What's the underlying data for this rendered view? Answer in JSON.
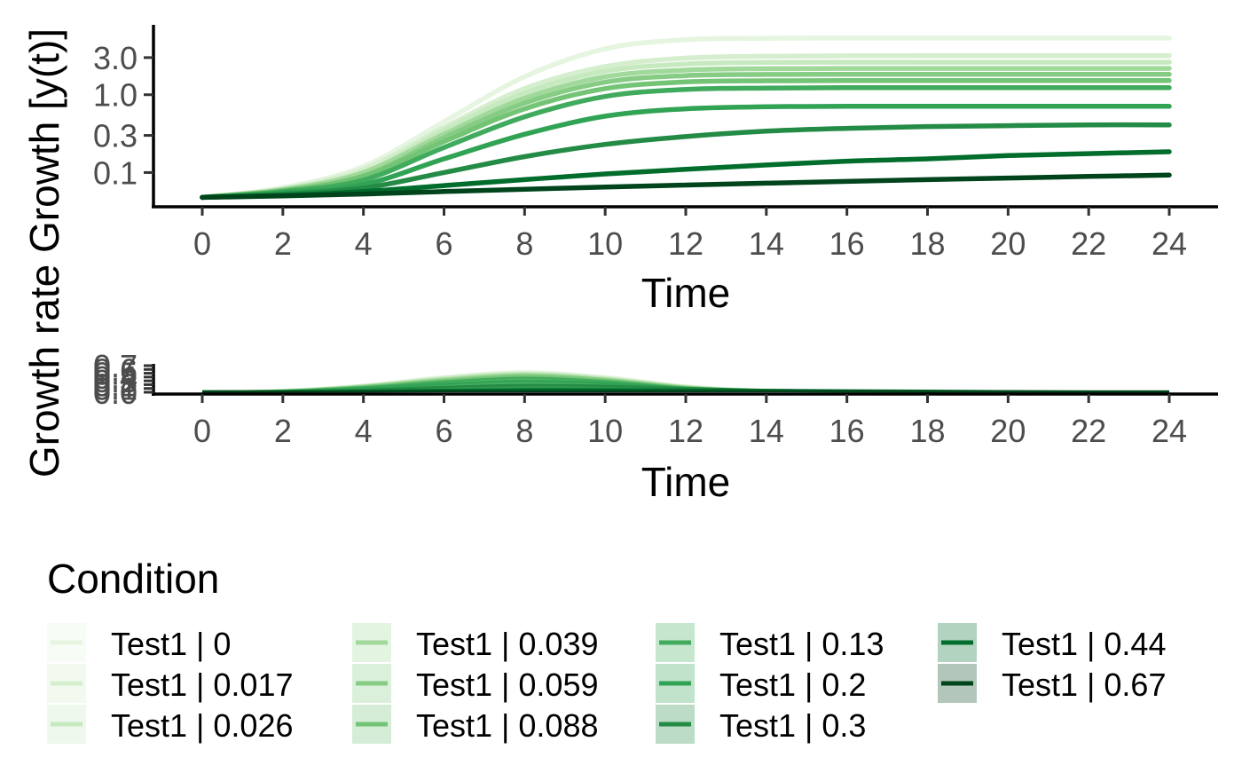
{
  "chart_data": [
    {
      "type": "line",
      "panel": "top",
      "xlabel": "Time",
      "ylabel": "Growth [y(t)]",
      "yscale": "log",
      "x_ticks": [
        0,
        2,
        4,
        6,
        8,
        10,
        12,
        14,
        16,
        18,
        20,
        22,
        24
      ],
      "y_ticks": [
        0.1,
        0.3,
        1.0,
        3.0
      ],
      "y_tick_labels": [
        "0.1",
        "0.3",
        "1.0",
        "3.0"
      ],
      "xlim": [
        -1.2,
        25.2
      ],
      "ylim": [
        0.0363,
        7.5
      ],
      "x": [
        0,
        2,
        4,
        6,
        8,
        10,
        12,
        14,
        16,
        18,
        20,
        22,
        24
      ],
      "series": [
        {
          "name": "Test1 | 0",
          "color": "#e5f5e0",
          "values": [
            0.048,
            0.064,
            0.12,
            0.45,
            1.7,
            3.9,
            5.1,
            5.32,
            5.35,
            5.35,
            5.35,
            5.35,
            5.35
          ]
        },
        {
          "name": "Test1 | 0.017",
          "color": "#d4eece",
          "values": [
            0.048,
            0.062,
            0.11,
            0.38,
            1.2,
            2.3,
            2.95,
            3.12,
            3.16,
            3.17,
            3.17,
            3.17,
            3.17
          ]
        },
        {
          "name": "Test1 | 0.026",
          "color": "#c7e9c0",
          "values": [
            0.048,
            0.061,
            0.1,
            0.35,
            1.05,
            2.0,
            2.48,
            2.6,
            2.62,
            2.62,
            2.62,
            2.62,
            2.62
          ]
        },
        {
          "name": "Test1 | 0.039",
          "color": "#a1d99b",
          "values": [
            0.048,
            0.06,
            0.1,
            0.31,
            0.9,
            1.7,
            2.07,
            2.16,
            2.18,
            2.18,
            2.18,
            2.18,
            2.18
          ]
        },
        {
          "name": "Test1 | 0.059",
          "color": "#86cc85",
          "values": [
            0.048,
            0.059,
            0.09,
            0.28,
            0.78,
            1.45,
            1.76,
            1.82,
            1.83,
            1.83,
            1.83,
            1.83,
            1.83
          ]
        },
        {
          "name": "Test1 | 0.088",
          "color": "#74c476",
          "values": [
            0.048,
            0.058,
            0.09,
            0.25,
            0.66,
            1.2,
            1.46,
            1.51,
            1.52,
            1.52,
            1.52,
            1.52,
            1.52
          ]
        },
        {
          "name": "Test1 | 0.13",
          "color": "#41ab5d",
          "values": [
            0.048,
            0.057,
            0.08,
            0.21,
            0.52,
            0.95,
            1.17,
            1.22,
            1.23,
            1.23,
            1.23,
            1.23,
            1.23
          ]
        },
        {
          "name": "Test1 | 0.2",
          "color": "#31a354",
          "values": [
            0.048,
            0.055,
            0.07,
            0.15,
            0.31,
            0.53,
            0.66,
            0.7,
            0.71,
            0.71,
            0.71,
            0.71,
            0.71
          ]
        },
        {
          "name": "Test1 | 0.3",
          "color": "#238b45",
          "values": [
            0.048,
            0.053,
            0.063,
            0.1,
            0.16,
            0.23,
            0.29,
            0.34,
            0.37,
            0.39,
            0.4,
            0.41,
            0.41
          ]
        },
        {
          "name": "Test1 | 0.44",
          "color": "#006d2c",
          "values": [
            0.048,
            0.051,
            0.057,
            0.068,
            0.081,
            0.096,
            0.11,
            0.125,
            0.14,
            0.15,
            0.165,
            0.175,
            0.185
          ]
        },
        {
          "name": "Test1 | 0.67",
          "color": "#00441b",
          "values": [
            0.048,
            0.05,
            0.053,
            0.057,
            0.061,
            0.065,
            0.069,
            0.073,
            0.077,
            0.081,
            0.085,
            0.089,
            0.093
          ]
        }
      ]
    },
    {
      "type": "area",
      "panel": "bottom",
      "xlabel": "Time",
      "ylabel": "Growth rate",
      "y_tick_labels": [
        "0.7",
        "0.6",
        "0.5",
        "0.4",
        "0.3",
        "0.2",
        "0.1",
        "0.0"
      ],
      "x_ticks": [
        0,
        2,
        4,
        6,
        8,
        10,
        12,
        14,
        16,
        18,
        20,
        22,
        24
      ],
      "xlim": [
        -1.2,
        25.2
      ],
      "ylim": [
        0,
        0.7
      ],
      "x": [
        0,
        2,
        4,
        6,
        8,
        10,
        12,
        14,
        16,
        18,
        20,
        22,
        24
      ],
      "series": [
        {
          "name": "Test1 | 0",
          "color": "#e5f5e0",
          "values": [
            0.02,
            0.06,
            0.2,
            0.42,
            0.55,
            0.42,
            0.18,
            0.06,
            0.02,
            0.01,
            0.0,
            0.0,
            0.0
          ]
        },
        {
          "name": "Test1 | 0.017",
          "color": "#d4eece",
          "values": [
            0.02,
            0.05,
            0.19,
            0.4,
            0.52,
            0.4,
            0.17,
            0.06,
            0.02,
            0.01,
            0.0,
            0.0,
            0.0
          ]
        },
        {
          "name": "Test1 | 0.026",
          "color": "#c7e9c0",
          "values": [
            0.02,
            0.05,
            0.18,
            0.38,
            0.5,
            0.38,
            0.16,
            0.05,
            0.02,
            0.01,
            0.0,
            0.0,
            0.0
          ]
        },
        {
          "name": "Test1 | 0.039",
          "color": "#a1d99b",
          "values": [
            0.02,
            0.05,
            0.17,
            0.36,
            0.48,
            0.36,
            0.15,
            0.05,
            0.02,
            0.01,
            0.0,
            0.0,
            0.0
          ]
        },
        {
          "name": "Test1 | 0.059",
          "color": "#86cc85",
          "values": [
            0.02,
            0.05,
            0.16,
            0.33,
            0.45,
            0.34,
            0.14,
            0.05,
            0.02,
            0.01,
            0.0,
            0.0,
            0.0
          ]
        },
        {
          "name": "Test1 | 0.088",
          "color": "#74c476",
          "values": [
            0.02,
            0.04,
            0.15,
            0.31,
            0.42,
            0.32,
            0.13,
            0.05,
            0.02,
            0.01,
            0.0,
            0.0,
            0.0
          ]
        },
        {
          "name": "Test1 | 0.13",
          "color": "#41ab5d",
          "values": [
            0.02,
            0.04,
            0.13,
            0.28,
            0.38,
            0.29,
            0.12,
            0.04,
            0.02,
            0.01,
            0.0,
            0.0,
            0.0
          ]
        },
        {
          "name": "Test1 | 0.2",
          "color": "#31a354",
          "values": [
            0.02,
            0.04,
            0.11,
            0.22,
            0.3,
            0.24,
            0.11,
            0.05,
            0.02,
            0.01,
            0.01,
            0.0,
            0.0
          ]
        },
        {
          "name": "Test1 | 0.3",
          "color": "#238b45",
          "values": [
            0.02,
            0.03,
            0.07,
            0.14,
            0.19,
            0.17,
            0.11,
            0.06,
            0.04,
            0.02,
            0.01,
            0.01,
            0.0
          ]
        },
        {
          "name": "Test1 | 0.44",
          "color": "#006d2c",
          "values": [
            0.02,
            0.02,
            0.04,
            0.06,
            0.08,
            0.08,
            0.07,
            0.06,
            0.05,
            0.04,
            0.03,
            0.02,
            0.02
          ]
        },
        {
          "name": "Test1 | 0.67",
          "color": "#00441b",
          "values": [
            0.02,
            0.02,
            0.02,
            0.03,
            0.03,
            0.03,
            0.03,
            0.03,
            0.03,
            0.02,
            0.02,
            0.02,
            0.02
          ]
        }
      ]
    }
  ],
  "legend": {
    "title": "Condition",
    "placement": "bottom",
    "columns": [
      [
        "Test1 | 0",
        "Test1 | 0.017",
        "Test1 | 0.026"
      ],
      [
        "Test1 | 0.039",
        "Test1 | 0.059",
        "Test1 | 0.088"
      ],
      [
        "Test1 | 0.13",
        "Test1 | 0.2",
        "Test1 | 0.3"
      ],
      [
        "Test1 | 0.44",
        "Test1 | 0.67"
      ]
    ]
  },
  "shared_ylabel": "Growth rate Growth [y(t)]"
}
